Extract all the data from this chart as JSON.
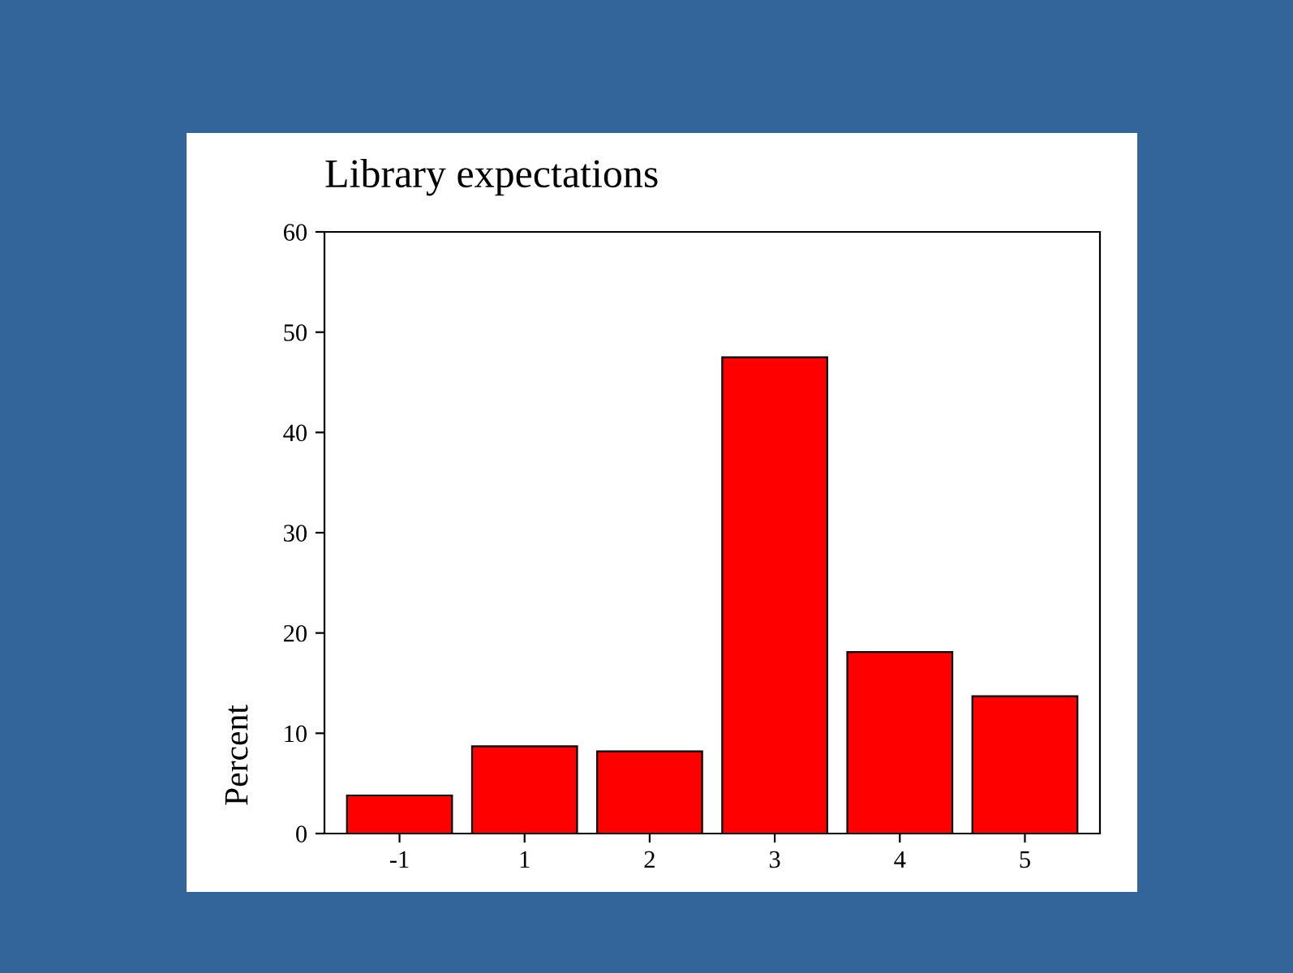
{
  "chart_data": {
    "type": "bar",
    "title": "Library expectations",
    "ylabel": "Percent",
    "categories": [
      "-1",
      "1",
      "2",
      "3",
      "4",
      "5"
    ],
    "values": [
      3.8,
      8.7,
      8.2,
      47.5,
      18.1,
      13.7
    ],
    "color": "#ff0000",
    "ylim": [
      0,
      60
    ],
    "yticks": [
      0,
      10,
      20,
      30,
      40,
      50,
      60
    ],
    "grid": false
  }
}
